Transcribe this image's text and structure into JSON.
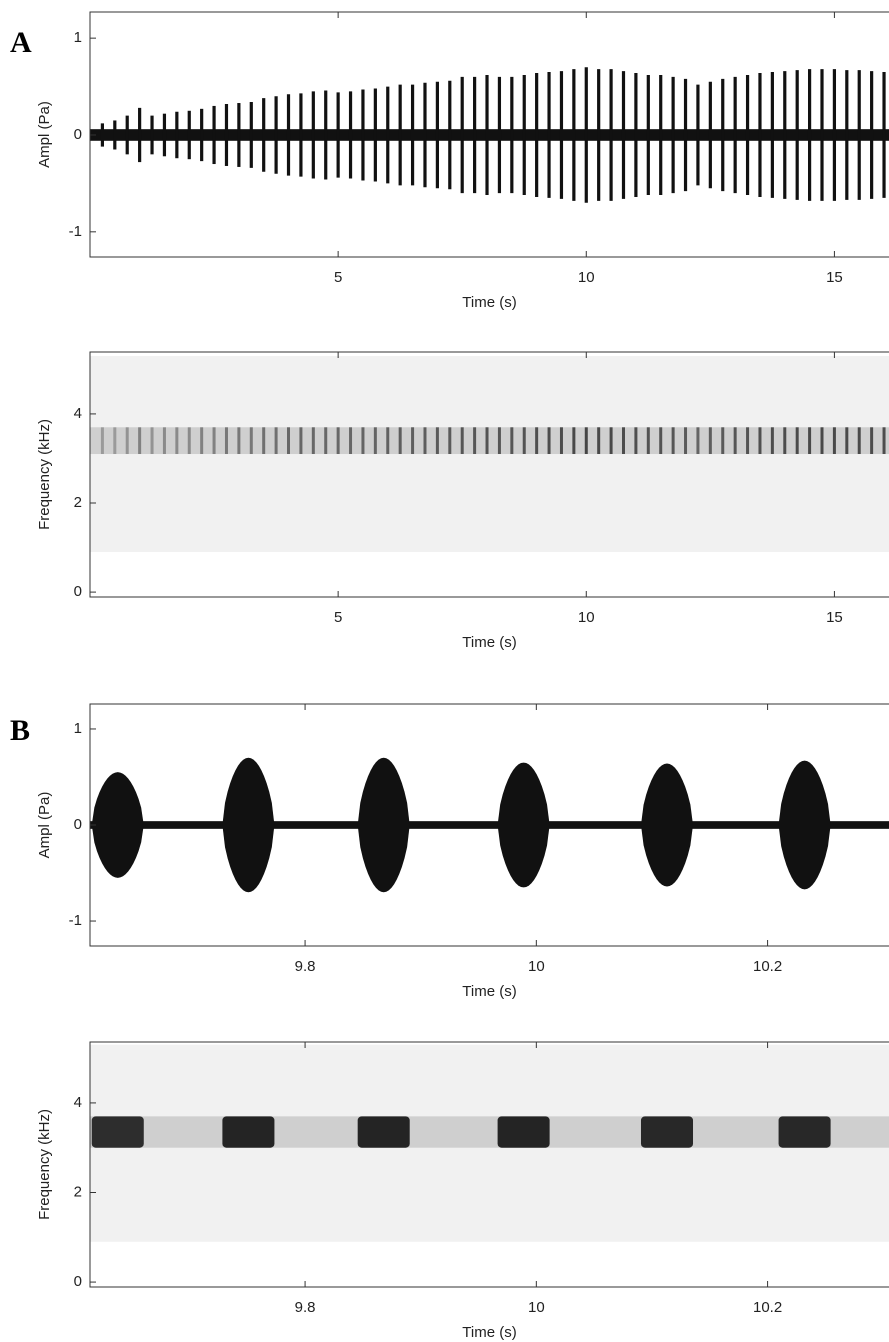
{
  "chart_data": [
    {
      "type": "waveform",
      "panel": "A",
      "x_label": "Time (s)",
      "y_label": "Ampl (Pa)",
      "xlim": [
        0,
        16.1
      ],
      "ylim": [
        -1.26,
        1.27
      ],
      "xticks": [
        5,
        10,
        15
      ],
      "yticks": [
        -1,
        0,
        1
      ],
      "noise_level": 0.06,
      "color": "#111111",
      "x": [
        0.25,
        0.5,
        0.75,
        1.0,
        1.25,
        1.5,
        1.75,
        2.0,
        2.25,
        2.5,
        2.75,
        3.0,
        3.25,
        3.5,
        3.75,
        4.0,
        4.25,
        4.5,
        4.75,
        5.0,
        5.25,
        5.5,
        5.75,
        6.0,
        6.25,
        6.5,
        6.75,
        7.0,
        7.25,
        7.5,
        7.75,
        8.0,
        8.25,
        8.5,
        8.75,
        9.0,
        9.25,
        9.5,
        9.75,
        10.0,
        10.25,
        10.5,
        10.75,
        11.0,
        11.25,
        11.5,
        11.75,
        12.0,
        12.25,
        12.5,
        12.75,
        13.0,
        13.25,
        13.5,
        13.75,
        14.0,
        14.25,
        14.5,
        14.75,
        15.0,
        15.25,
        15.5,
        15.75,
        16.0
      ],
      "values": [
        0.12,
        0.15,
        0.2,
        0.28,
        0.2,
        0.22,
        0.24,
        0.25,
        0.27,
        0.3,
        0.32,
        0.33,
        0.34,
        0.38,
        0.4,
        0.42,
        0.43,
        0.45,
        0.46,
        0.44,
        0.45,
        0.47,
        0.48,
        0.5,
        0.52,
        0.52,
        0.54,
        0.55,
        0.56,
        0.6,
        0.6,
        0.62,
        0.6,
        0.6,
        0.62,
        0.64,
        0.65,
        0.66,
        0.68,
        0.7,
        0.68,
        0.68,
        0.66,
        0.64,
        0.62,
        0.62,
        0.6,
        0.58,
        0.52,
        0.55,
        0.58,
        0.6,
        0.62,
        0.64,
        0.65,
        0.66,
        0.67,
        0.68,
        0.68,
        0.68,
        0.67,
        0.67,
        0.66,
        0.65
      ]
    },
    {
      "type": "spectrogram",
      "x_label": "Time (s)",
      "y_label": "Frequency (kHz)",
      "xlim": [
        0,
        16.1
      ],
      "ylim": [
        -0.11,
        5.39
      ],
      "xticks": [
        5,
        10,
        15
      ],
      "yticks": [
        0,
        2,
        4
      ],
      "range": [
        0.9,
        5.3
      ],
      "band": [
        3.1,
        3.7
      ],
      "color": "#222222",
      "x": [
        0.25,
        0.5,
        0.75,
        1.0,
        1.25,
        1.5,
        1.75,
        2.0,
        2.25,
        2.5,
        2.75,
        3.0,
        3.25,
        3.5,
        3.75,
        4.0,
        4.25,
        4.5,
        4.75,
        5.0,
        5.25,
        5.5,
        5.75,
        6.0,
        6.25,
        6.5,
        6.75,
        7.0,
        7.25,
        7.5,
        7.75,
        8.0,
        8.25,
        8.5,
        8.75,
        9.0,
        9.25,
        9.5,
        9.75,
        10.0,
        10.25,
        10.5,
        10.75,
        11.0,
        11.25,
        11.5,
        11.75,
        12.0,
        12.25,
        12.5,
        12.75,
        13.0,
        13.25,
        13.5,
        13.75,
        14.0,
        14.25,
        14.5,
        14.75,
        15.0,
        15.25,
        15.5,
        15.75,
        16.0
      ],
      "values": [
        0.3,
        0.3,
        0.35,
        0.45,
        0.35,
        0.4,
        0.4,
        0.4,
        0.45,
        0.45,
        0.5,
        0.5,
        0.5,
        0.55,
        0.55,
        0.6,
        0.6,
        0.6,
        0.6,
        0.6,
        0.6,
        0.62,
        0.62,
        0.64,
        0.65,
        0.65,
        0.66,
        0.68,
        0.68,
        0.7,
        0.7,
        0.72,
        0.7,
        0.7,
        0.72,
        0.74,
        0.75,
        0.76,
        0.78,
        0.8,
        0.78,
        0.78,
        0.76,
        0.74,
        0.72,
        0.72,
        0.7,
        0.68,
        0.62,
        0.65,
        0.68,
        0.7,
        0.72,
        0.74,
        0.75,
        0.76,
        0.77,
        0.78,
        0.78,
        0.78,
        0.77,
        0.77,
        0.76,
        0.75
      ]
    },
    {
      "type": "waveform",
      "panel": "B",
      "x_label": "Time (s)",
      "y_label": "Ampl (Pa)",
      "xlim": [
        9.614,
        10.305
      ],
      "ylim": [
        -1.26,
        1.26
      ],
      "xticks": [
        9.8,
        10,
        10.2
      ],
      "yticks": [
        -1,
        0,
        1
      ],
      "noise_level": 0.04,
      "color": "#111111",
      "x": [
        9.638,
        9.751,
        9.868,
        9.989,
        10.113,
        10.232
      ],
      "values": [
        0.55,
        0.7,
        0.7,
        0.65,
        0.64,
        0.67
      ],
      "durations": [
        0.045,
        0.045,
        0.045,
        0.045,
        0.045,
        0.045
      ]
    },
    {
      "type": "spectrogram",
      "x_label": "Time (s)",
      "y_label": "Frequency (kHz)",
      "xlim": [
        9.614,
        10.305
      ],
      "ylim": [
        -0.11,
        5.36
      ],
      "xticks": [
        9.8,
        10,
        10.2
      ],
      "yticks": [
        0,
        2,
        4
      ],
      "range": [
        0.9,
        5.3
      ],
      "band": [
        3.0,
        3.7
      ],
      "color": "#111111",
      "x": [
        9.638,
        9.751,
        9.868,
        9.989,
        10.113,
        10.232
      ],
      "values": [
        0.85,
        0.9,
        0.9,
        0.9,
        0.88,
        0.88
      ],
      "durations": [
        0.045,
        0.045,
        0.045,
        0.045,
        0.045,
        0.045
      ]
    }
  ]
}
